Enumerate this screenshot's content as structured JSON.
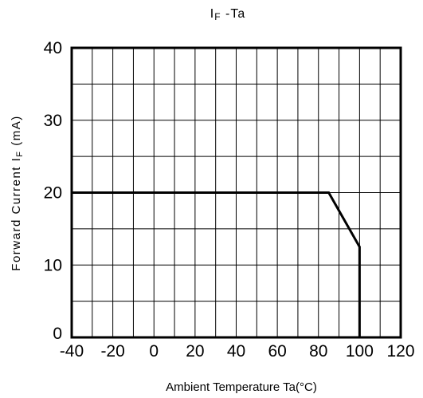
{
  "chart_data": {
    "type": "line",
    "title_main": "I",
    "title_sub": "F",
    "title_rest": " -Ta",
    "xlabel": "Ambient Temperature Ta(°C)",
    "ylabel_main": "Forward Current I",
    "ylabel_sub": "F",
    "ylabel_unit": " (mA)",
    "xlim": [
      -40,
      120
    ],
    "ylim": [
      0,
      40
    ],
    "x_ticks": [
      -40,
      -20,
      0,
      20,
      40,
      60,
      80,
      100,
      120
    ],
    "y_ticks": [
      0,
      10,
      20,
      30,
      40
    ],
    "grid": true,
    "grid_x_step": 10,
    "grid_y_step": 5,
    "series": [
      {
        "x": [
          -40,
          85,
          100,
          100
        ],
        "y": [
          20,
          20,
          12.5,
          0
        ]
      }
    ]
  }
}
